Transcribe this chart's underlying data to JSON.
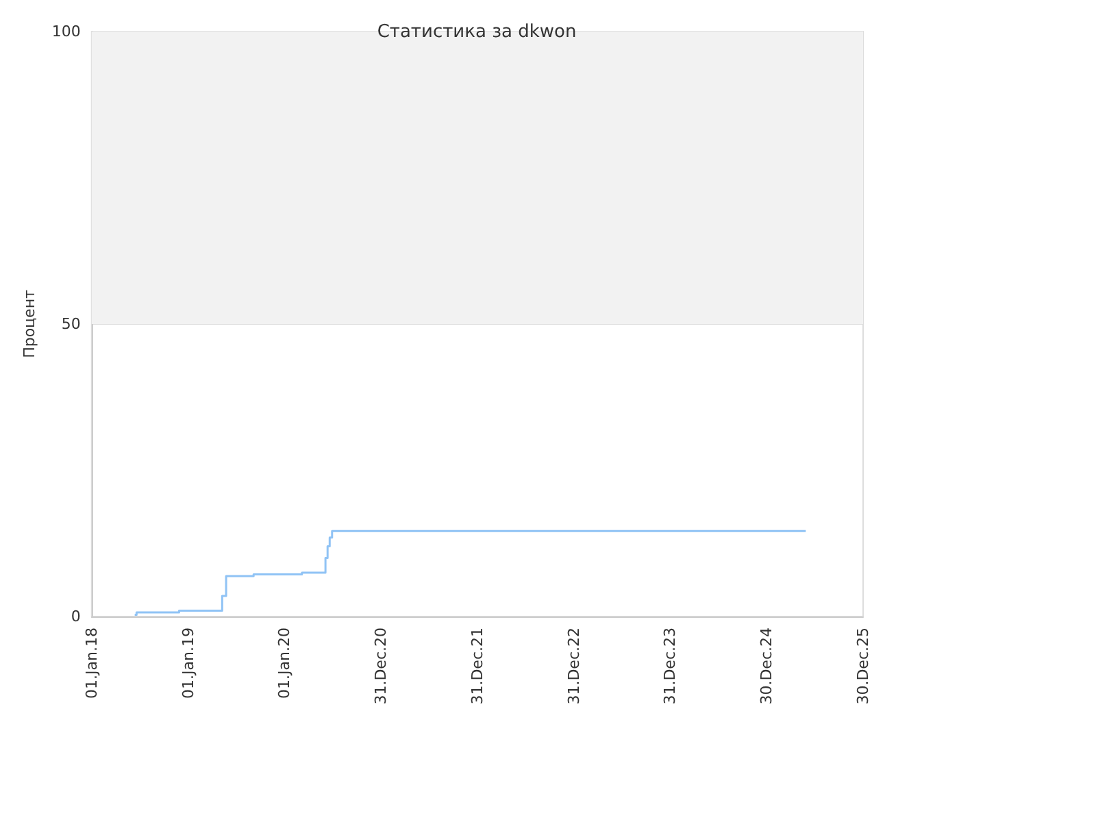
{
  "chart_data": {
    "type": "step",
    "title": "Статистика за dkwon",
    "ylabel": "Процент",
    "x": [
      "2018-06-13",
      "2018-06-20",
      "2018-11-28",
      "2019-05-10",
      "2019-05-25",
      "2019-09-06",
      "2019-12-20",
      "2020-03-07",
      "2020-06-04",
      "2020-06-12",
      "2020-06-20",
      "2020-06-29",
      "2025-05-27"
    ],
    "series": [
      {
        "color": "#90c3f5",
        "values": [
          0.3,
          0.7,
          1,
          3.5,
          6.9,
          7.2,
          7.2,
          7.5,
          10,
          12,
          13.5,
          14.6,
          14.6
        ]
      }
    ],
    "xlim": [
      "2018-01-01",
      "2025-12-30"
    ],
    "xticks": [
      {
        "value": "2018-01-01",
        "label": "01.Jan.18"
      },
      {
        "value": "2019-01-01",
        "label": "01.Jan.19"
      },
      {
        "value": "2020-01-01",
        "label": "01.Jan.20"
      },
      {
        "value": "2020-12-31",
        "label": "31.Dec.20"
      },
      {
        "value": "2021-12-31",
        "label": "31.Dec.21"
      },
      {
        "value": "2022-12-31",
        "label": "31.Dec.22"
      },
      {
        "value": "2023-12-31",
        "label": "31.Dec.23"
      },
      {
        "value": "2024-12-30",
        "label": "30.Dec.24"
      },
      {
        "value": "2025-12-30",
        "label": "30.Dec.25"
      }
    ],
    "ylim": [
      0,
      100
    ],
    "yticks": [
      0,
      50,
      100
    ],
    "bands": [
      {
        "axis": "y",
        "from": 50,
        "to": 100,
        "color": "#f2f2f2"
      }
    ],
    "grid": "y"
  }
}
